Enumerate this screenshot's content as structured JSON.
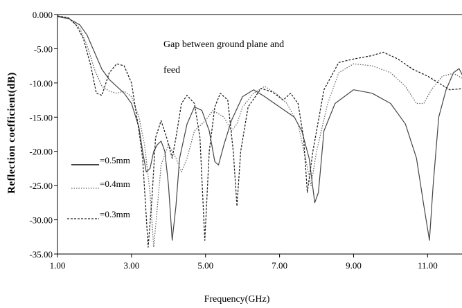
{
  "chart_data": {
    "type": "line",
    "title": "",
    "xlabel": "Frequency(GHz)",
    "ylabel": "Reflection coefficient(dB)",
    "xlim": [
      1.0,
      12.0
    ],
    "ylim": [
      -35.0,
      0.0
    ],
    "x_ticks": [
      1.0,
      3.0,
      5.0,
      7.0,
      9.0,
      11.0
    ],
    "x_tick_labels": [
      "1.00",
      "3.00",
      "5.00",
      "7.00",
      "9.00",
      "11.00"
    ],
    "y_ticks": [
      0,
      -5,
      -10,
      -15,
      -20,
      -25,
      -30,
      -35
    ],
    "y_tick_labels": [
      "0.000",
      "-5.00",
      "-10.00",
      "-15.00",
      "-20.00",
      "-25.00",
      "-30.00",
      "-35.00"
    ],
    "grid": false,
    "annotation": {
      "line1": "Gap between ground plane  and",
      "line2": "feed"
    },
    "legend_placement": "bottom-left",
    "series": [
      {
        "name": "=0.5mm",
        "style": "solid",
        "color": "#444444",
        "points": [
          [
            1.0,
            -0.3
          ],
          [
            1.3,
            -0.6
          ],
          [
            1.6,
            -1.5
          ],
          [
            1.8,
            -3
          ],
          [
            2.0,
            -5.5
          ],
          [
            2.2,
            -8
          ],
          [
            2.4,
            -9.5
          ],
          [
            2.6,
            -10.5
          ],
          [
            2.8,
            -11.5
          ],
          [
            3.0,
            -13
          ],
          [
            3.2,
            -16.5
          ],
          [
            3.3,
            -20
          ],
          [
            3.4,
            -23
          ],
          [
            3.5,
            -22.5
          ],
          [
            3.6,
            -20
          ],
          [
            3.7,
            -19
          ],
          [
            3.8,
            -18.5
          ],
          [
            3.9,
            -20
          ],
          [
            4.0,
            -25
          ],
          [
            4.1,
            -33
          ],
          [
            4.2,
            -28
          ],
          [
            4.3,
            -21
          ],
          [
            4.5,
            -16
          ],
          [
            4.7,
            -13.5
          ],
          [
            4.9,
            -14
          ],
          [
            5.1,
            -17
          ],
          [
            5.25,
            -21.5
          ],
          [
            5.35,
            -22
          ],
          [
            5.5,
            -19
          ],
          [
            5.7,
            -15.5
          ],
          [
            6.0,
            -12
          ],
          [
            6.3,
            -11
          ],
          [
            6.6,
            -12
          ],
          [
            7.0,
            -13.5
          ],
          [
            7.4,
            -15
          ],
          [
            7.6,
            -17
          ],
          [
            7.8,
            -21
          ],
          [
            7.95,
            -27.5
          ],
          [
            8.05,
            -26
          ],
          [
            8.2,
            -17
          ],
          [
            8.5,
            -13
          ],
          [
            9.0,
            -11
          ],
          [
            9.5,
            -11.5
          ],
          [
            10.0,
            -13
          ],
          [
            10.4,
            -16
          ],
          [
            10.7,
            -21
          ],
          [
            10.9,
            -28
          ],
          [
            11.05,
            -33
          ],
          [
            11.15,
            -25
          ],
          [
            11.3,
            -15
          ],
          [
            11.5,
            -11
          ],
          [
            11.7,
            -8.5
          ],
          [
            11.85,
            -7.9
          ],
          [
            12.0,
            -9.5
          ]
        ]
      },
      {
        "name": "=0.4mm",
        "style": "dotted",
        "color": "#666666",
        "points": [
          [
            1.0,
            -0.2
          ],
          [
            1.3,
            -0.5
          ],
          [
            1.6,
            -2
          ],
          [
            1.8,
            -4.5
          ],
          [
            2.0,
            -8
          ],
          [
            2.2,
            -10.5
          ],
          [
            2.4,
            -11.2
          ],
          [
            2.6,
            -11.5
          ],
          [
            2.8,
            -11.2
          ],
          [
            3.0,
            -12
          ],
          [
            3.2,
            -15
          ],
          [
            3.35,
            -19
          ],
          [
            3.5,
            -26
          ],
          [
            3.6,
            -34
          ],
          [
            3.7,
            -28
          ],
          [
            3.8,
            -22
          ],
          [
            4.0,
            -19
          ],
          [
            4.2,
            -21
          ],
          [
            4.35,
            -23
          ],
          [
            4.5,
            -21
          ],
          [
            4.7,
            -17
          ],
          [
            5.0,
            -15.5
          ],
          [
            5.2,
            -14
          ],
          [
            5.5,
            -15
          ],
          [
            5.7,
            -17
          ],
          [
            5.85,
            -16
          ],
          [
            6.0,
            -13.5
          ],
          [
            6.3,
            -11.5
          ],
          [
            6.6,
            -10.5
          ],
          [
            6.9,
            -11.5
          ],
          [
            7.2,
            -13
          ],
          [
            7.5,
            -16
          ],
          [
            7.7,
            -21
          ],
          [
            7.85,
            -25
          ],
          [
            8.0,
            -20
          ],
          [
            8.3,
            -13
          ],
          [
            8.6,
            -8.5
          ],
          [
            9.0,
            -7.2
          ],
          [
            9.5,
            -7.5
          ],
          [
            10.0,
            -8.5
          ],
          [
            10.4,
            -10.5
          ],
          [
            10.7,
            -13
          ],
          [
            10.9,
            -13
          ],
          [
            11.1,
            -11
          ],
          [
            11.4,
            -9
          ],
          [
            11.7,
            -8.6
          ],
          [
            12.0,
            -9.5
          ]
        ]
      },
      {
        "name": "=0.3mm",
        "style": "dashed",
        "color": "#222222",
        "points": [
          [
            1.0,
            -0.2
          ],
          [
            1.3,
            -0.5
          ],
          [
            1.5,
            -1.5
          ],
          [
            1.7,
            -3.5
          ],
          [
            1.9,
            -7.5
          ],
          [
            2.05,
            -11.5
          ],
          [
            2.2,
            -11.8
          ],
          [
            2.4,
            -8.5
          ],
          [
            2.6,
            -7.2
          ],
          [
            2.8,
            -7.5
          ],
          [
            3.0,
            -10
          ],
          [
            3.2,
            -17
          ],
          [
            3.3,
            -21
          ],
          [
            3.45,
            -34
          ],
          [
            3.55,
            -27
          ],
          [
            3.65,
            -18
          ],
          [
            3.8,
            -15.5
          ],
          [
            3.95,
            -18
          ],
          [
            4.1,
            -21
          ],
          [
            4.2,
            -18
          ],
          [
            4.35,
            -13
          ],
          [
            4.5,
            -11.8
          ],
          [
            4.7,
            -13
          ],
          [
            4.85,
            -18
          ],
          [
            4.98,
            -33
          ],
          [
            5.1,
            -20
          ],
          [
            5.25,
            -13.5
          ],
          [
            5.4,
            -11.5
          ],
          [
            5.6,
            -12.5
          ],
          [
            5.75,
            -20
          ],
          [
            5.85,
            -28
          ],
          [
            5.95,
            -20
          ],
          [
            6.15,
            -13.5
          ],
          [
            6.5,
            -10.8
          ],
          [
            6.8,
            -11.3
          ],
          [
            7.1,
            -12.5
          ],
          [
            7.3,
            -11.5
          ],
          [
            7.5,
            -13
          ],
          [
            7.65,
            -18
          ],
          [
            7.75,
            -26
          ],
          [
            7.9,
            -20
          ],
          [
            8.2,
            -11
          ],
          [
            8.6,
            -7
          ],
          [
            9.0,
            -6.5
          ],
          [
            9.5,
            -6
          ],
          [
            9.8,
            -5.5
          ],
          [
            10.2,
            -6.5
          ],
          [
            10.6,
            -8
          ],
          [
            11.0,
            -9
          ],
          [
            11.3,
            -10
          ],
          [
            11.6,
            -11
          ],
          [
            12.0,
            -10.8
          ]
        ]
      }
    ]
  }
}
